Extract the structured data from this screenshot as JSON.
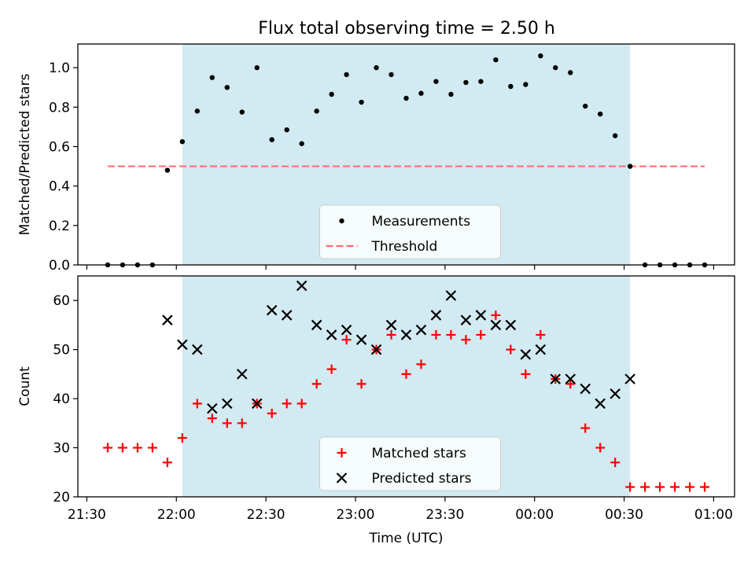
{
  "title": "Flux total observing time = 2.50 h",
  "colors": {
    "span": "#add8e6",
    "measurement": "#000000",
    "threshold": "#ff6f6f",
    "matched": "#ff0000",
    "predicted": "#000000"
  },
  "chart_data": [
    {
      "type": "scatter",
      "panel": "top",
      "ylabel": "Matched/Predicted stars",
      "ylim": [
        0,
        1.12
      ],
      "yticks": [
        0.0,
        0.2,
        0.4,
        0.6,
        0.8,
        1.0
      ],
      "ytick_labels": [
        "0.0",
        "0.2",
        "0.4",
        "0.6",
        "0.8",
        "1.0"
      ],
      "xlim": [
        "21:27",
        "01:07"
      ],
      "shaded_span": [
        "22:02",
        "00:32"
      ],
      "threshold": {
        "name": "Threshold",
        "value": 0.5,
        "x_range": [
          "21:37",
          "00:57"
        ]
      },
      "legend": [
        "Measurements",
        "Threshold"
      ],
      "legend_position": "lower center",
      "series": [
        {
          "name": "Measurements",
          "marker": "dot",
          "x": [
            "21:37",
            "21:42",
            "21:47",
            "21:52",
            "21:57",
            "22:02",
            "22:07",
            "22:12",
            "22:17",
            "22:22",
            "22:27",
            "22:32",
            "22:37",
            "22:42",
            "22:47",
            "22:52",
            "22:57",
            "23:02",
            "23:07",
            "23:12",
            "23:17",
            "23:22",
            "23:27",
            "23:32",
            "23:37",
            "23:42",
            "23:47",
            "23:52",
            "23:57",
            "00:02",
            "00:07",
            "00:12",
            "00:17",
            "00:22",
            "00:27",
            "00:32",
            "00:37",
            "00:42",
            "00:47",
            "00:52",
            "00:57"
          ],
          "y": [
            0,
            0,
            0,
            0,
            0.48,
            0.625,
            0.78,
            0.95,
            0.9,
            0.775,
            1.0,
            0.635,
            0.685,
            0.615,
            0.78,
            0.865,
            0.965,
            0.825,
            1.0,
            0.965,
            0.845,
            0.87,
            0.93,
            0.865,
            0.925,
            0.93,
            1.04,
            0.905,
            0.915,
            1.06,
            1.0,
            0.975,
            0.805,
            0.765,
            0.655,
            0.5,
            0,
            0,
            0,
            0,
            0
          ]
        }
      ]
    },
    {
      "type": "scatter",
      "panel": "bottom",
      "xlabel": "Time (UTC)",
      "ylabel": "Count",
      "ylim": [
        20,
        65
      ],
      "yticks": [
        20,
        30,
        40,
        50,
        60
      ],
      "ytick_labels": [
        "20",
        "30",
        "40",
        "50",
        "60"
      ],
      "xlim": [
        "21:27",
        "01:07"
      ],
      "xticks": [
        "21:30",
        "22:00",
        "22:30",
        "23:00",
        "23:30",
        "00:00",
        "00:30",
        "01:00"
      ],
      "xtick_labels": [
        "21:30",
        "22:00",
        "22:30",
        "23:00",
        "23:30",
        "00:00",
        "00:30",
        "01:00"
      ],
      "shaded_span": [
        "22:02",
        "00:32"
      ],
      "legend": [
        "Matched stars",
        "Predicted stars"
      ],
      "legend_position": "lower center",
      "series": [
        {
          "name": "Matched stars",
          "marker": "plus",
          "x": [
            "21:37",
            "21:42",
            "21:47",
            "21:52",
            "21:57",
            "22:02",
            "22:07",
            "22:12",
            "22:17",
            "22:22",
            "22:27",
            "22:32",
            "22:37",
            "22:42",
            "22:47",
            "22:52",
            "22:57",
            "23:02",
            "23:07",
            "23:12",
            "23:17",
            "23:22",
            "23:27",
            "23:32",
            "23:37",
            "23:42",
            "23:47",
            "23:52",
            "23:57",
            "00:02",
            "00:07",
            "00:12",
            "00:17",
            "00:22",
            "00:27",
            "00:32",
            "00:37",
            "00:42",
            "00:47",
            "00:52",
            "00:57"
          ],
          "y": [
            30,
            30,
            30,
            30,
            27,
            32,
            39,
            36,
            35,
            35,
            39,
            37,
            39,
            39,
            43,
            46,
            52,
            43,
            50,
            53,
            45,
            47,
            53,
            53,
            52,
            53,
            57,
            50,
            45,
            53,
            44,
            43,
            34,
            30,
            27,
            22,
            22,
            22,
            22,
            22,
            22
          ]
        },
        {
          "name": "Predicted stars",
          "marker": "x",
          "x": [
            "21:57",
            "22:02",
            "22:07",
            "22:12",
            "22:17",
            "22:22",
            "22:27",
            "22:32",
            "22:37",
            "22:42",
            "22:47",
            "22:52",
            "22:57",
            "23:02",
            "23:07",
            "23:12",
            "23:17",
            "23:22",
            "23:27",
            "23:32",
            "23:37",
            "23:42",
            "23:47",
            "23:52",
            "23:57",
            "00:02",
            "00:07",
            "00:12",
            "00:17",
            "00:22",
            "00:27",
            "00:32"
          ],
          "y": [
            56,
            51,
            50,
            38,
            39,
            45,
            39,
            58,
            57,
            63,
            55,
            53,
            54,
            52,
            50,
            55,
            53,
            54,
            57,
            61,
            56,
            57,
            55,
            55,
            49,
            50,
            44,
            44,
            42,
            39,
            41,
            44
          ]
        }
      ]
    }
  ]
}
